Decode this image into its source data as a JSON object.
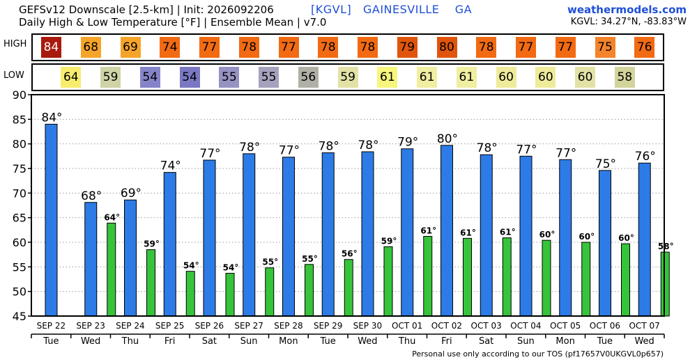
{
  "header": {
    "title1": "GEFSv12 Downscale [2.5-km] | Init: 2026092206",
    "title2": "Daily High & Low Temperature [°F] | Ensemble Mean | v7.0",
    "station": "[KGVL]   GAINESVILLE    GA",
    "site": "weathermodels.com",
    "coords": "KGVL: 34.27°N, -83.83°W"
  },
  "row_labels": {
    "high": "HIGH",
    "low": "LOW"
  },
  "footer": "Personal use only according to our TOS (pf17657V0UKGVL0p657)",
  "chart_data": {
    "type": "bar",
    "title": "Daily High & Low Temperature [°F] | Ensemble Mean",
    "categories": [
      "SEP 22",
      "SEP 23",
      "SEP 24",
      "SEP 25",
      "SEP 26",
      "SEP 27",
      "SEP 28",
      "SEP 29",
      "SEP 30",
      "OCT 01",
      "OCT 02",
      "OCT 03",
      "OCT 04",
      "OCT 05",
      "OCT 06",
      "OCT 07"
    ],
    "days": [
      "Tue",
      "Wed",
      "Thu",
      "Fri",
      "Sat",
      "Sun",
      "Mon",
      "Tue",
      "Wed",
      "Thu",
      "Fri",
      "Sat",
      "Sun",
      "Mon",
      "Tue",
      "Wed"
    ],
    "series": [
      {
        "name": "HIGH",
        "color": "#2d7be6",
        "values": [
          84,
          68,
          69,
          74,
          77,
          78,
          77,
          78,
          78,
          79,
          80,
          78,
          77,
          77,
          75,
          76
        ],
        "bar_values": [
          84,
          68.1,
          68.6,
          74.2,
          76.7,
          78,
          77.3,
          78.2,
          78.4,
          79,
          79.7,
          77.8,
          77.5,
          76.8,
          74.6,
          76.1
        ]
      },
      {
        "name": "LOW",
        "color": "#36c43a",
        "values": [
          null,
          64,
          59,
          54,
          54,
          55,
          55,
          56,
          59,
          61,
          61,
          61,
          60,
          60,
          60,
          58
        ],
        "bar_values": [
          null,
          63.9,
          58.5,
          54.1,
          53.7,
          54.8,
          55.5,
          56.5,
          59.1,
          61.2,
          60.8,
          60.9,
          60.4,
          60,
          59.7,
          58
        ]
      }
    ],
    "strip_high": {
      "values": [
        "84",
        "68",
        "69",
        "74",
        "77",
        "78",
        "77",
        "78",
        "78",
        "79",
        "80",
        "78",
        "77",
        "77",
        "75",
        "76"
      ],
      "colors": [
        "#a81a0d",
        "#f5a42a",
        "#f5a42a",
        "#f26a12",
        "#f26a12",
        "#f26a12",
        "#f26a12",
        "#f26a12",
        "#f26a12",
        "#e0550b",
        "#e0550b",
        "#f26a12",
        "#f26a12",
        "#f26a12",
        "#f5832a",
        "#f26a12"
      ]
    },
    "strip_low": {
      "values": [
        "64",
        "59",
        "54",
        "54",
        "55",
        "55",
        "56",
        "59",
        "61",
        "61",
        "61",
        "60",
        "60",
        "60",
        "58"
      ],
      "colors": [
        "#f7ec6e",
        "#cfd3a6",
        "#8684c9",
        "#7a78c2",
        "#9693c3",
        "#a6a2bd",
        "#b1b0a6",
        "#e3e2a6",
        "#f7f57c",
        "#f0eea0",
        "#f0eea0",
        "#eeeb9b",
        "#eeeb9b",
        "#e3e2a6",
        "#d3d49c"
      ]
    },
    "ylim": [
      45,
      90
    ],
    "yticks": [
      45,
      50,
      55,
      60,
      65,
      70,
      75,
      80,
      85,
      90
    ],
    "grid": true
  }
}
